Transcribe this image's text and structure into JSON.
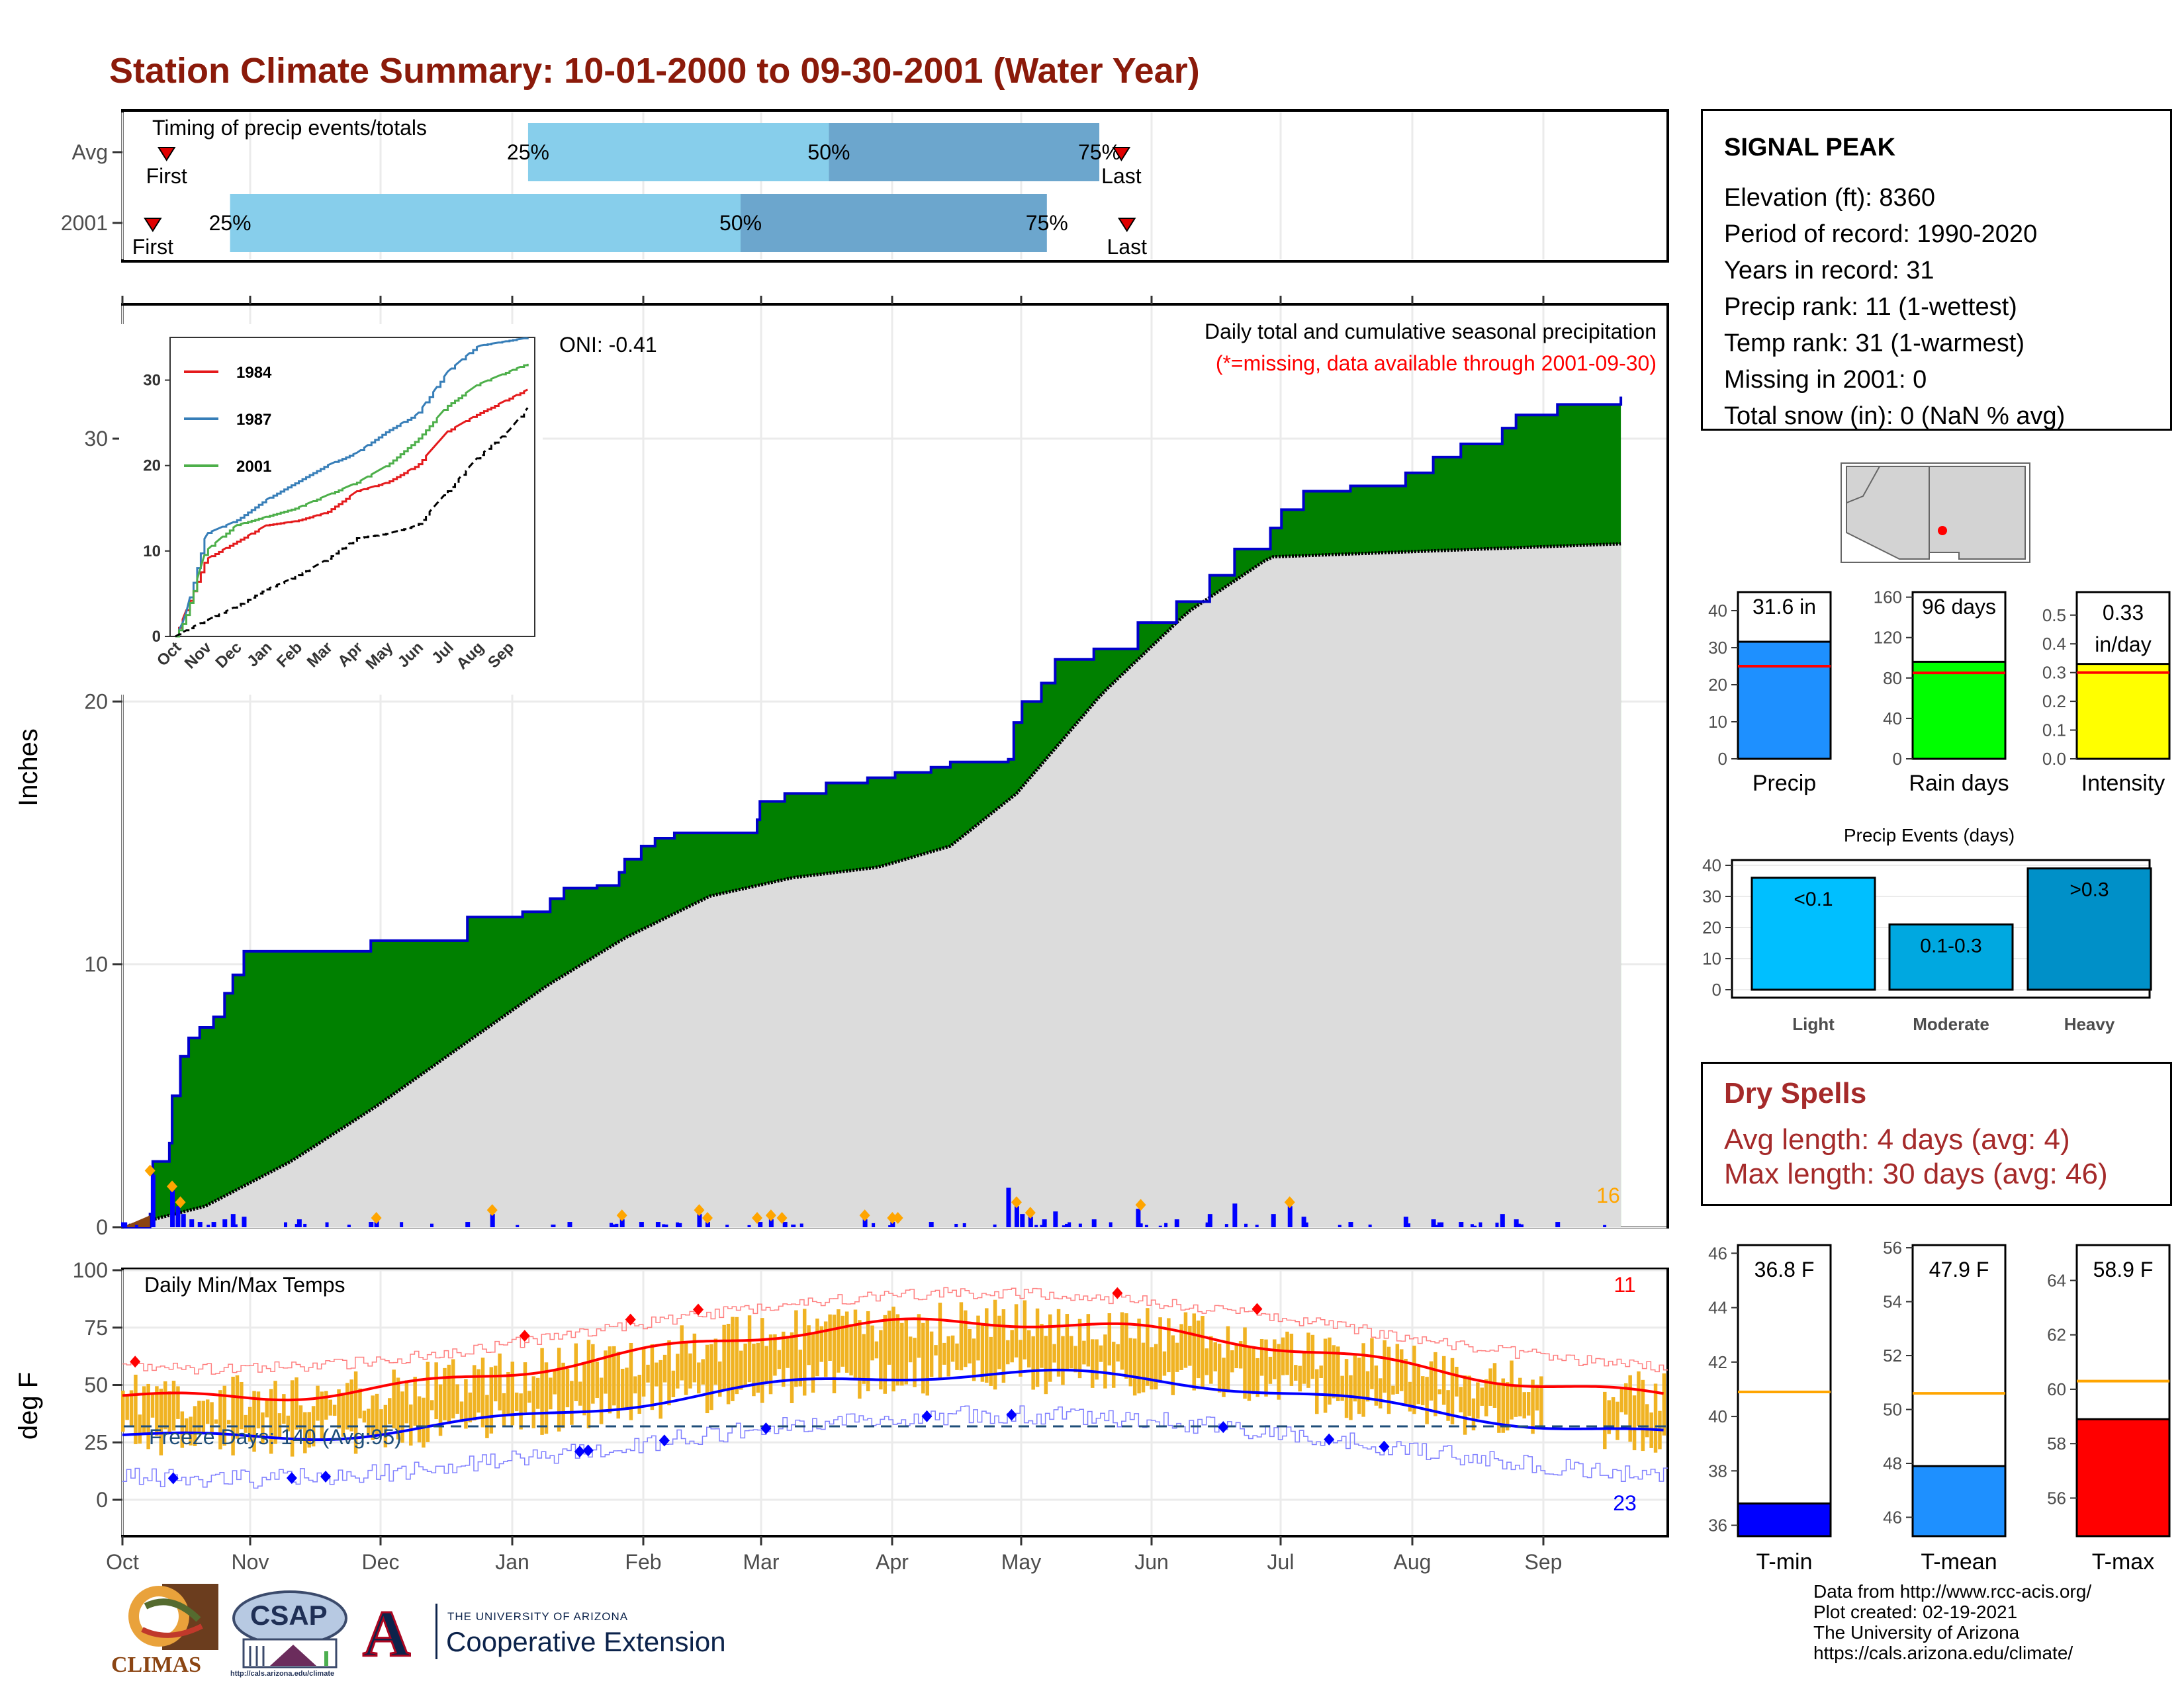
{
  "title": "Station Climate Summary: 10-01-2000 to 09-30-2001 (Water Year)",
  "colors": {
    "title": "#8b1a0a",
    "precip_fill": "#008000",
    "precip_line": "#0000cc",
    "avg_area": "#dcdcdc",
    "bar_light": "#87ceeb",
    "bar_dark": "#6ca6cd",
    "temp_bar": "#f0b323",
    "tmax_line": "#ff0000",
    "tmin_line": "#0000ff",
    "dry_spell_text": "#a52a2a"
  },
  "timing": {
    "label": "Timing of precip events/totals",
    "rows": [
      {
        "name": "Avg",
        "first": "First",
        "last": "Last",
        "p25": "25%",
        "p50": "50%",
        "p75": "75%",
        "first_day": 16,
        "p25_day": 147,
        "p50_day": 256,
        "p75_day": 354,
        "last_day": 362
      },
      {
        "name": "2001",
        "first": "First",
        "last": "Last",
        "p25": "25%",
        "p50": "50%",
        "p75": "75%",
        "first_day": 11,
        "p25_day": 39,
        "p50_day": 224,
        "p75_day": 335,
        "last_day": 364
      }
    ]
  },
  "station": {
    "name": "SIGNAL PEAK",
    "lines": [
      "Elevation (ft): 8360",
      "Period of record: 1990-2020",
      "Years in record: 31",
      "Precip rank: 11 (1-wettest)",
      "Temp rank: 31 (1-warmest)",
      "Missing in 2001: 0",
      "Total snow (in): 0 (NaN % avg)"
    ]
  },
  "summary_bars": [
    {
      "name": "Precip",
      "value_label": "31.6 in",
      "value": 31.6,
      "avg": 25,
      "ymax": 45,
      "ticks": [
        0,
        10,
        20,
        30,
        40
      ],
      "color": "#1e90ff"
    },
    {
      "name": "Rain days",
      "value_label": "96 days",
      "value": 96,
      "avg": 85,
      "ymax": 165,
      "ticks": [
        0,
        40,
        80,
        120,
        160
      ],
      "color": "#00ff00"
    },
    {
      "name": "Intensity",
      "value_label": "0.33 in/day",
      "value": 0.33,
      "avg": 0.3,
      "ymax": 0.58,
      "ticks": [
        0.0,
        0.1,
        0.2,
        0.3,
        0.4,
        0.5
      ],
      "color": "#ffff00"
    }
  ],
  "precip_events": {
    "title": "Precip Events (days)",
    "categories": [
      "Light",
      "Moderate",
      "Heavy"
    ],
    "labels": [
      "<0.1",
      "0.1-0.3",
      ">0.3"
    ],
    "values": [
      36,
      21,
      39
    ],
    "colors": [
      "#00bfff",
      "#00a8e0",
      "#0090c8"
    ],
    "ticks": [
      0,
      10,
      20,
      30,
      40
    ]
  },
  "dry_spells": {
    "title": "Dry Spells",
    "lines": [
      "Avg length: 4 days (avg: 4)",
      "Max length: 30 days (avg: 46)"
    ]
  },
  "temp_summary": [
    {
      "name": "T-min",
      "value_label": "36.8 F",
      "value": 36.8,
      "avg": 40.9,
      "ymin": 35.6,
      "ymax": 46.3,
      "ticks": [
        36,
        38,
        40,
        42,
        44,
        46
      ],
      "color": "#0000ff"
    },
    {
      "name": "T-mean",
      "value_label": "47.9 F",
      "value": 47.9,
      "avg": 50.6,
      "ymin": 45.3,
      "ymax": 56.1,
      "ticks": [
        46,
        48,
        50,
        52,
        54,
        56
      ],
      "color": "#1e90ff"
    },
    {
      "name": "T-max",
      "value_label": "58.9 F",
      "value": 58.9,
      "avg": 60.3,
      "ymin": 54.6,
      "ymax": 65.3,
      "ticks": [
        56,
        58,
        60,
        62,
        64
      ],
      "color": "#ff0000"
    }
  ],
  "chart_data": [
    {
      "type": "area",
      "title": "Daily total and cumulative seasonal precipitation",
      "subtitle": "(*=missing, data available through 2001-09-30)",
      "ylabel": "Inches",
      "ylim": [
        0,
        35
      ],
      "yticks": [
        0,
        10,
        20,
        30
      ],
      "xticks": [
        "Oct",
        "Nov",
        "Dec",
        "Jan",
        "Feb",
        "Mar",
        "Apr",
        "May",
        "Jun",
        "Jul",
        "Aug",
        "Sep"
      ],
      "oni": "ONI: -0.41",
      "extreme_count": "16",
      "cumulative_2001": [
        [
          0,
          0
        ],
        [
          10,
          0.5
        ],
        [
          11,
          2.5
        ],
        [
          17,
          3.2
        ],
        [
          18,
          5.0
        ],
        [
          21,
          6.5
        ],
        [
          24,
          7.2
        ],
        [
          28,
          7.6
        ],
        [
          33,
          8.0
        ],
        [
          37,
          8.9
        ],
        [
          40,
          9.6
        ],
        [
          44,
          10.5
        ],
        [
          63,
          10.5
        ],
        [
          82,
          10.5
        ],
        [
          90,
          10.9
        ],
        [
          120,
          10.9
        ],
        [
          125,
          11.8
        ],
        [
          145,
          12.0
        ],
        [
          155,
          12.5
        ],
        [
          160,
          12.9
        ],
        [
          172,
          13.0
        ],
        [
          180,
          13.5
        ],
        [
          182,
          14.0
        ],
        [
          188,
          14.5
        ],
        [
          193,
          14.8
        ],
        [
          200,
          15.0
        ],
        [
          215,
          15.0
        ],
        [
          230,
          15.5
        ],
        [
          231,
          16.2
        ],
        [
          240,
          16.5
        ],
        [
          255,
          16.9
        ],
        [
          270,
          17.1
        ],
        [
          280,
          17.3
        ],
        [
          293,
          17.5
        ],
        [
          300,
          17.7
        ],
        [
          321,
          17.8
        ],
        [
          323,
          19.2
        ],
        [
          326,
          20.0
        ],
        [
          333,
          20.7
        ],
        [
          338,
          21.6
        ],
        [
          352,
          22.0
        ],
        [
          368,
          23.0
        ],
        [
          382,
          23.8
        ],
        [
          394,
          24.8
        ],
        [
          403,
          25.8
        ],
        [
          416,
          26.6
        ],
        [
          420,
          27.3
        ],
        [
          428,
          28.0
        ],
        [
          445,
          28.2
        ],
        [
          465,
          28.7
        ],
        [
          475,
          29.3
        ],
        [
          485,
          29.8
        ],
        [
          500,
          30.4
        ],
        [
          505,
          30.9
        ],
        [
          520,
          31.3
        ],
        [
          543,
          31.6
        ]
      ],
      "average_cumulative": [
        [
          0,
          0
        ],
        [
          30,
          0.8
        ],
        [
          61,
          2.5
        ],
        [
          92,
          4.6
        ],
        [
          123,
          6.9
        ],
        [
          154,
          9.2
        ],
        [
          182,
          11.0
        ],
        [
          213,
          12.6
        ],
        [
          243,
          13.3
        ],
        [
          274,
          13.7
        ],
        [
          300,
          14.5
        ],
        [
          324,
          16.5
        ],
        [
          355,
          20.3
        ],
        [
          386,
          23.4
        ],
        [
          416,
          25.5
        ]
      ],
      "daily_highlight_days": [
        10,
        18,
        21,
        92,
        134,
        181,
        209,
        212,
        230,
        235,
        239,
        269,
        279,
        281,
        324,
        329,
        369,
        423
      ],
      "daily_values": [
        [
          11,
          2.0
        ],
        [
          18,
          1.4
        ],
        [
          20,
          0.8
        ],
        [
          22,
          0.5
        ],
        [
          25,
          0.3
        ],
        [
          28,
          0.2
        ],
        [
          33,
          0.2
        ],
        [
          37,
          0.3
        ],
        [
          40,
          0.5
        ],
        [
          44,
          0.4
        ],
        [
          64,
          0.3
        ],
        [
          90,
          0.2
        ],
        [
          92,
          0.3
        ],
        [
          125,
          0.2
        ],
        [
          134,
          0.5
        ],
        [
          156,
          0.1
        ],
        [
          162,
          0.2
        ],
        [
          181,
          0.3
        ],
        [
          188,
          0.2
        ],
        [
          194,
          0.2
        ],
        [
          209,
          0.5
        ],
        [
          212,
          0.2
        ],
        [
          231,
          0.2
        ],
        [
          235,
          0.3
        ],
        [
          240,
          0.2
        ],
        [
          243,
          0.1
        ],
        [
          269,
          0.3
        ],
        [
          279,
          0.2
        ],
        [
          293,
          0.2
        ],
        [
          321,
          1.5
        ],
        [
          324,
          0.8
        ],
        [
          326,
          0.5
        ],
        [
          329,
          0.4
        ],
        [
          334,
          0.3
        ],
        [
          338,
          0.6
        ],
        [
          352,
          0.3
        ],
        [
          368,
          0.7
        ],
        [
          382,
          0.3
        ],
        [
          394,
          0.5
        ],
        [
          403,
          0.9
        ],
        [
          417,
          0.5
        ],
        [
          423,
          0.8
        ],
        [
          428,
          0.4
        ],
        [
          445,
          0.2
        ],
        [
          465,
          0.4
        ],
        [
          475,
          0.3
        ],
        [
          485,
          0.2
        ],
        [
          500,
          0.5
        ],
        [
          505,
          0.3
        ],
        [
          520,
          0.2
        ]
      ]
    },
    {
      "type": "line",
      "title": "",
      "inset": true,
      "series": [
        {
          "name": "1984",
          "color": "#e41a1c"
        },
        {
          "name": "1987",
          "color": "#377eb8"
        },
        {
          "name": "2001",
          "color": "#4daf4a"
        }
      ],
      "xticks": [
        "Oct",
        "Nov",
        "Dec",
        "Jan",
        "Feb",
        "Mar",
        "Apr",
        "May",
        "Jun",
        "Jul",
        "Aug",
        "Sep"
      ],
      "yticks": [
        0,
        10,
        20,
        30
      ],
      "ylim": [
        0,
        35
      ]
    },
    {
      "type": "bar",
      "title": "Daily Min/Max Temps",
      "ylabel": "deg F",
      "ylim": [
        -5,
        100
      ],
      "yticks": [
        0,
        25,
        50,
        75,
        100
      ],
      "freeze_line": 32,
      "freeze_label": "Freeze Days: 140 (Avg:95)",
      "record_high_count": "11",
      "record_low_count": "23",
      "xticks": [
        "Oct",
        "Nov",
        "Dec",
        "Jan",
        "Feb",
        "Mar",
        "Apr",
        "May",
        "Jun",
        "Jul",
        "Aug",
        "Sep"
      ]
    }
  ],
  "credits": {
    "lines": [
      "Data from http://www.rcc-acis.org/",
      "Plot created: 02-19-2021",
      "The University of Arizona",
      "https://cals.arizona.edu/climate/"
    ],
    "logo_climas": "CLIMAS",
    "logo_csap": "CSAP",
    "csap_url": "http://cals.arizona.edu/climate",
    "ua_small": "THE UNIVERSITY OF ARIZONA",
    "ua_big": "Cooperative Extension",
    "ua_letter": "A"
  }
}
